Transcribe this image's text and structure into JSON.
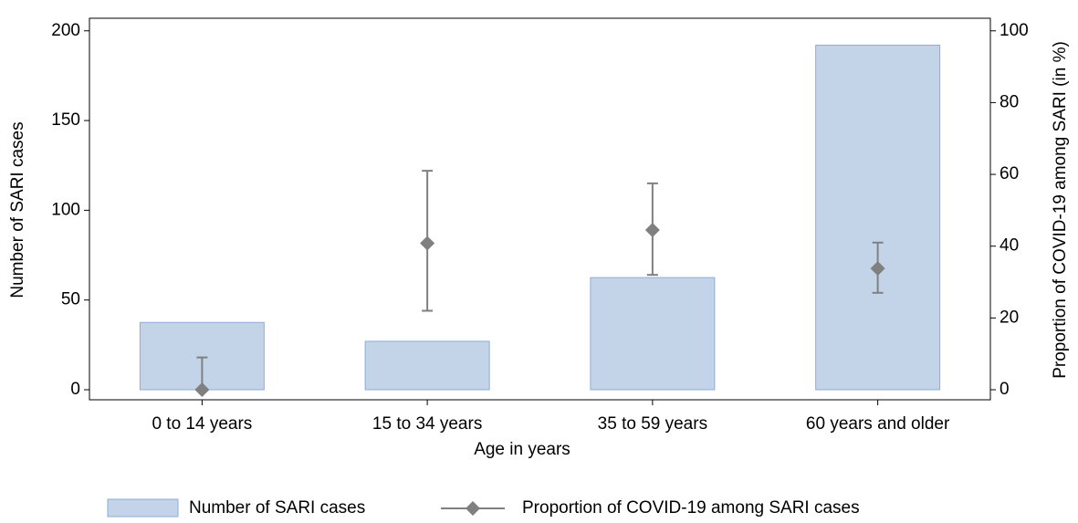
{
  "chart_data": {
    "type": "bar-errorbar",
    "x_label": "Age in years",
    "y_label": "Number of SARI cases",
    "y2_label": "Proportion of COVID-19 among SARI (in %)",
    "categories": [
      "0 to 14 years",
      "15 to 34 years",
      "35 to 59 years",
      "60 years and older"
    ],
    "ylim": [
      -5.6,
      207
    ],
    "yticks": [
      0,
      50,
      100,
      150,
      200
    ],
    "y2lim": [
      -2.8,
      103.5
    ],
    "y2ticks": [
      0,
      20,
      40,
      60,
      80,
      100
    ],
    "legend": "bottom",
    "series": [
      {
        "name": "Number of SARI cases",
        "color": "#c3d3e8",
        "values": [
          37.5,
          27,
          62.5,
          192
        ]
      },
      {
        "name": "Proportion of COVID-19 among SARI cases",
        "color": "#808080",
        "axis": "y2",
        "values": [
          0,
          40.8,
          44.5,
          33.8
        ],
        "lower": [
          0,
          22,
          32,
          27
        ],
        "upper": [
          9,
          61,
          57.5,
          41
        ]
      }
    ]
  }
}
